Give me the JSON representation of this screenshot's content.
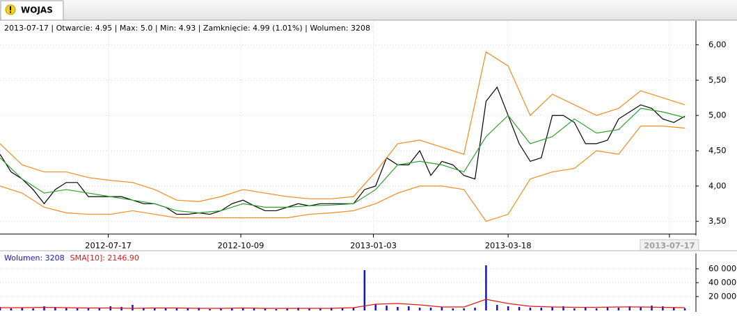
{
  "tab": "WOJAS",
  "info": "2013-07-17 | Otwarcie: 4.95 | Max: 5.0 | Min: 4.93 | Zamknięcie: 4.99 (1.01%)  | Wolumen: 3208",
  "chart_data": [
    {
      "type": "line",
      "x": [
        0,
        5,
        10,
        15,
        20,
        25,
        30,
        35,
        40,
        45,
        50,
        55,
        60,
        65,
        70,
        75,
        80,
        85,
        90,
        95,
        100,
        105,
        110,
        115,
        120,
        125,
        130,
        135,
        140,
        145,
        150,
        155,
        160,
        165,
        170,
        175,
        180,
        185,
        190,
        195,
        200,
        205,
        210,
        215,
        220,
        225,
        230,
        235,
        240,
        245,
        250,
        255,
        260,
        265,
        270,
        275,
        280,
        285,
        290,
        295,
        300,
        305,
        310
      ],
      "xlim": [
        0,
        315
      ],
      "xticks": [
        {
          "value": 49,
          "label": "2012-07-17"
        },
        {
          "value": 109,
          "label": "2012-10-09"
        },
        {
          "value": 169,
          "label": "2013-01-03"
        },
        {
          "value": 230,
          "label": "2013-03-18"
        },
        {
          "value": 303,
          "label": "2013-07-17"
        }
      ],
      "ylim": [
        3.32,
        6.34
      ],
      "yticks": [
        {
          "value": 3.5,
          "label": "3,50"
        },
        {
          "value": 4,
          "label": "4,00"
        },
        {
          "value": 4.5,
          "label": "4,50"
        },
        {
          "value": 5,
          "label": "5,00"
        },
        {
          "value": 5.5,
          "label": "5,50"
        },
        {
          "value": 6,
          "label": "6,00"
        }
      ],
      "grid": true,
      "series": [
        {
          "color": "#000000",
          "values": [
            4.45,
            4.2,
            4.1,
            3.95,
            3.75,
            3.95,
            4.05,
            4.05,
            3.85,
            3.85,
            3.85,
            3.85,
            3.8,
            3.75,
            3.75,
            3.7,
            3.6,
            3.6,
            3.62,
            3.6,
            3.65,
            3.75,
            3.8,
            3.72,
            3.65,
            3.65,
            3.7,
            3.75,
            3.72,
            3.75,
            3.75,
            3.75,
            3.75,
            3.95,
            4.0,
            4.4,
            4.3,
            4.3,
            4.5,
            4.15,
            4.35,
            4.3,
            4.15,
            4.1,
            5.2,
            5.4,
            5.0,
            4.6,
            4.35,
            4.4,
            5.0,
            5.0,
            4.9,
            4.6,
            4.6,
            4.65,
            4.95,
            5.05,
            5.15,
            5.1,
            4.95,
            4.9,
            4.99
          ]
        },
        {
          "color": "#2e9e2e",
          "x": [
            0,
            10,
            20,
            30,
            40,
            50,
            60,
            70,
            80,
            90,
            100,
            110,
            120,
            130,
            140,
            150,
            160,
            170,
            180,
            190,
            200,
            210,
            220,
            230,
            240,
            250,
            260,
            270,
            280,
            290,
            300,
            310
          ],
          "values": [
            4.4,
            4.1,
            3.9,
            3.95,
            3.9,
            3.85,
            3.8,
            3.75,
            3.65,
            3.62,
            3.65,
            3.75,
            3.7,
            3.7,
            3.72,
            3.73,
            3.75,
            3.95,
            4.3,
            4.35,
            4.3,
            4.2,
            4.7,
            5.0,
            4.6,
            4.7,
            4.95,
            4.75,
            4.8,
            5.1,
            5.05,
            4.97
          ]
        },
        {
          "color": "#f28a1e",
          "x": [
            0,
            10,
            20,
            30,
            40,
            50,
            60,
            70,
            80,
            90,
            100,
            110,
            120,
            130,
            140,
            150,
            160,
            170,
            180,
            190,
            200,
            210,
            220,
            230,
            240,
            250,
            260,
            270,
            280,
            290,
            300,
            310
          ],
          "values": [
            4.6,
            4.3,
            4.2,
            4.2,
            4.12,
            4.08,
            4.05,
            3.95,
            3.8,
            3.78,
            3.85,
            3.95,
            3.9,
            3.85,
            3.82,
            3.82,
            3.85,
            4.2,
            4.6,
            4.65,
            4.55,
            4.45,
            5.9,
            5.7,
            5.0,
            5.3,
            5.15,
            5.0,
            5.1,
            5.35,
            5.25,
            5.15
          ]
        },
        {
          "color": "#f28a1e",
          "x": [
            0,
            10,
            20,
            30,
            40,
            50,
            60,
            70,
            80,
            90,
            100,
            110,
            120,
            130,
            140,
            150,
            160,
            170,
            180,
            190,
            200,
            210,
            220,
            230,
            240,
            250,
            260,
            270,
            280,
            290,
            300,
            310
          ],
          "values": [
            4.0,
            3.9,
            3.7,
            3.62,
            3.6,
            3.6,
            3.65,
            3.6,
            3.55,
            3.55,
            3.55,
            3.55,
            3.55,
            3.55,
            3.6,
            3.62,
            3.65,
            3.75,
            3.9,
            4.0,
            4.0,
            3.95,
            3.5,
            3.6,
            4.1,
            4.2,
            4.25,
            4.5,
            4.45,
            4.85,
            4.85,
            4.82
          ]
        }
      ]
    },
    {
      "type": "bar",
      "x": [
        0,
        5,
        10,
        15,
        20,
        25,
        30,
        35,
        40,
        45,
        50,
        55,
        60,
        65,
        70,
        75,
        80,
        85,
        90,
        95,
        100,
        105,
        110,
        115,
        120,
        125,
        130,
        135,
        140,
        145,
        150,
        155,
        160,
        165,
        170,
        175,
        180,
        185,
        190,
        195,
        200,
        205,
        210,
        215,
        220,
        225,
        230,
        235,
        240,
        245,
        250,
        255,
        260,
        265,
        270,
        275,
        280,
        285,
        290,
        295,
        300,
        305,
        310
      ],
      "xlim": [
        0,
        315
      ],
      "ylim": [
        0,
        82000
      ],
      "yticks": [
        {
          "value": 20000,
          "label": "20 000"
        },
        {
          "value": 40000,
          "label": "40 000"
        },
        {
          "value": 60000,
          "label": "60 000"
        }
      ],
      "series": [
        {
          "name": "Wolumen: 3208",
          "color": "#1414c8",
          "values": [
            5000,
            3000,
            4000,
            3000,
            6000,
            5000,
            4000,
            3000,
            3000,
            4000,
            6000,
            5000,
            8000,
            4000,
            3000,
            3000,
            4000,
            3000,
            4000,
            2000,
            3000,
            3000,
            4000,
            3000,
            3000,
            2000,
            3000,
            4000,
            3000,
            3000,
            4000,
            3000,
            4000,
            58000,
            9000,
            7000,
            5000,
            6000,
            4000,
            4000,
            5000,
            3000,
            3000,
            4000,
            65000,
            8000,
            6000,
            5000,
            4000,
            4000,
            5000,
            6000,
            3000,
            4000,
            3000,
            5000,
            4000,
            6000,
            5000,
            7000,
            6000,
            4000,
            3208
          ]
        },
        {
          "name": "SMA[10]: 2146.90",
          "type": "line",
          "color": "#e01818",
          "x": [
            0,
            10,
            20,
            30,
            40,
            50,
            60,
            70,
            80,
            90,
            100,
            110,
            120,
            130,
            140,
            150,
            160,
            170,
            180,
            190,
            200,
            210,
            220,
            230,
            240,
            250,
            260,
            270,
            280,
            290,
            300,
            310
          ],
          "values": [
            4000,
            4000,
            4500,
            4000,
            3500,
            3500,
            3000,
            3500,
            3500,
            3000,
            3000,
            3500,
            3000,
            3000,
            3000,
            3000,
            4000,
            9000,
            10000,
            8000,
            5000,
            5000,
            16000,
            10000,
            6000,
            5000,
            4500,
            4500,
            5000,
            5000,
            4500,
            4000
          ]
        }
      ]
    }
  ]
}
